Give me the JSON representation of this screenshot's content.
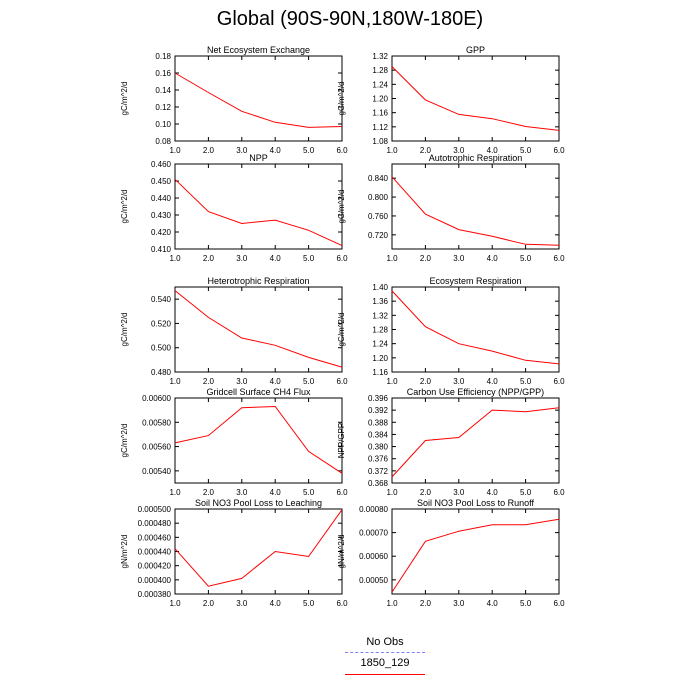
{
  "title": "Global (90S-90N,180W-180E)",
  "chart_data": [
    {
      "type": "line",
      "title": "Net Ecosystem Exchange",
      "ylabel": "gC/m^2/d",
      "x": [
        1,
        2,
        3,
        4,
        5,
        6
      ],
      "xticks": [
        "1.0",
        "2.0",
        "3.0",
        "4.0",
        "5.0",
        "6.0"
      ],
      "ylim": [
        0.08,
        0.18
      ],
      "yticks": [
        "0.08",
        "0.10",
        "0.12",
        "0.14",
        "0.16",
        "0.18"
      ],
      "series": [
        {
          "name": "1850_129",
          "values": [
            0.16,
            0.137,
            0.115,
            0.102,
            0.096,
            0.097
          ]
        }
      ]
    },
    {
      "type": "line",
      "title": "GPP",
      "ylabel": "gC/m^2/d",
      "x": [
        1,
        2,
        3,
        4,
        5,
        6
      ],
      "xticks": [
        "1.0",
        "2.0",
        "3.0",
        "4.0",
        "5.0",
        "6.0"
      ],
      "ylim": [
        1.08,
        1.32
      ],
      "yticks": [
        "1.08",
        "1.12",
        "1.16",
        "1.20",
        "1.24",
        "1.28",
        "1.32"
      ],
      "series": [
        {
          "name": "1850_129",
          "values": [
            1.29,
            1.196,
            1.155,
            1.143,
            1.121,
            1.11
          ]
        }
      ]
    },
    {
      "type": "line",
      "title": "NPP",
      "ylabel": "gC/m^2/d",
      "x": [
        1,
        2,
        3,
        4,
        5,
        6
      ],
      "xticks": [
        "1.0",
        "2.0",
        "3.0",
        "4.0",
        "5.0",
        "6.0"
      ],
      "ylim": [
        0.41,
        0.46
      ],
      "yticks": [
        "0.410",
        "0.420",
        "0.430",
        "0.440",
        "0.450",
        "0.460"
      ],
      "series": [
        {
          "name": "1850_129",
          "values": [
            0.451,
            0.432,
            0.425,
            0.427,
            0.421,
            0.412
          ]
        }
      ]
    },
    {
      "type": "line",
      "title": "Autotrophic Respiration",
      "ylabel": "gC/m^2/d",
      "x": [
        1,
        2,
        3,
        4,
        5,
        6
      ],
      "xticks": [
        "1.0",
        "2.0",
        "3.0",
        "4.0",
        "5.0",
        "6.0"
      ],
      "ylim": [
        0.69,
        0.87
      ],
      "yticks": [
        "0.720",
        "0.760",
        "0.800",
        "0.840"
      ],
      "series": [
        {
          "name": "1850_129",
          "values": [
            0.843,
            0.764,
            0.731,
            0.717,
            0.7,
            0.698
          ]
        }
      ]
    },
    {
      "type": "line",
      "title": "Heterotrophic Respiration",
      "ylabel": "gC/m^2/d",
      "x": [
        1,
        2,
        3,
        4,
        5,
        6
      ],
      "xticks": [
        "1.0",
        "2.0",
        "3.0",
        "4.0",
        "5.0",
        "6.0"
      ],
      "ylim": [
        0.48,
        0.55
      ],
      "yticks": [
        "0.480",
        "0.500",
        "0.520",
        "0.540"
      ],
      "series": [
        {
          "name": "1850_129",
          "values": [
            0.547,
            0.525,
            0.508,
            0.502,
            0.492,
            0.484
          ]
        }
      ]
    },
    {
      "type": "line",
      "title": "Ecosystem Respiration",
      "ylabel": "gC/m^2/d",
      "x": [
        1,
        2,
        3,
        4,
        5,
        6
      ],
      "xticks": [
        "1.0",
        "2.0",
        "3.0",
        "4.0",
        "5.0",
        "6.0"
      ],
      "ylim": [
        1.16,
        1.4
      ],
      "yticks": [
        "1.16",
        "1.20",
        "1.24",
        "1.28",
        "1.32",
        "1.36",
        "1.40"
      ],
      "series": [
        {
          "name": "1850_129",
          "values": [
            1.389,
            1.288,
            1.24,
            1.219,
            1.193,
            1.183
          ]
        }
      ]
    },
    {
      "type": "line",
      "title": "Gridcell Surface CH4 Flux",
      "ylabel": "gC/m^2/d",
      "x": [
        1,
        2,
        3,
        4,
        5,
        6
      ],
      "xticks": [
        "1.0",
        "2.0",
        "3.0",
        "4.0",
        "5.0",
        "6.0"
      ],
      "ylim": [
        0.0053,
        0.006
      ],
      "yticks": [
        "0.00540",
        "0.00560",
        "0.00580",
        "0.00600"
      ],
      "series": [
        {
          "name": "1850_129",
          "values": [
            0.00563,
            0.00569,
            0.00592,
            0.00593,
            0.00556,
            0.00538
          ]
        }
      ]
    },
    {
      "type": "line",
      "title": "Carbon Use Efficiency (NPP/GPP)",
      "ylabel": "NPP/GPP",
      "x": [
        1,
        2,
        3,
        4,
        5,
        6
      ],
      "xticks": [
        "1.0",
        "2.0",
        "3.0",
        "4.0",
        "5.0",
        "6.0"
      ],
      "ylim": [
        0.368,
        0.396
      ],
      "yticks": [
        "0.368",
        "0.372",
        "0.376",
        "0.380",
        "0.384",
        "0.388",
        "0.392",
        "0.396"
      ],
      "series": [
        {
          "name": "1850_129",
          "values": [
            0.37,
            0.382,
            0.383,
            0.392,
            0.3915,
            0.3928
          ]
        }
      ]
    },
    {
      "type": "line",
      "title": "Soil NO3 Pool Loss to Leaching",
      "ylabel": "gN/m^2/d",
      "x": [
        1,
        2,
        3,
        4,
        5,
        6
      ],
      "xticks": [
        "1.0",
        "2.0",
        "3.0",
        "4.0",
        "5.0",
        "6.0"
      ],
      "ylim": [
        0.00038,
        0.0005
      ],
      "yticks": [
        "0.000380",
        "0.000400",
        "0.000420",
        "0.000440",
        "0.000460",
        "0.000480",
        "0.000500"
      ],
      "series": [
        {
          "name": "1850_129",
          "values": [
            0.000444,
            0.000391,
            0.000402,
            0.00044,
            0.000433,
            0.000499
          ]
        }
      ]
    },
    {
      "type": "line",
      "title": "Soil NO3 Pool Loss to Runoff",
      "ylabel": "gN/m^2/d",
      "x": [
        1,
        2,
        3,
        4,
        5,
        6
      ],
      "xticks": [
        "1.0",
        "2.0",
        "3.0",
        "4.0",
        "5.0",
        "6.0"
      ],
      "ylim": [
        0.00044,
        0.0008
      ],
      "yticks": [
        "0.00050",
        "0.00060",
        "0.00070",
        "0.00080"
      ],
      "series": [
        {
          "name": "1850_129",
          "values": [
            0.000448,
            0.000663,
            0.000706,
            0.000733,
            0.000733,
            0.000757
          ]
        }
      ]
    }
  ],
  "legend": {
    "entries": [
      {
        "label": "No Obs",
        "color": "#8080ff",
        "style": "dashed"
      },
      {
        "label": "1850_129",
        "color": "#ff0000",
        "style": "solid"
      }
    ]
  },
  "colors": {
    "series": "#ff0000",
    "axis": "#000000"
  }
}
